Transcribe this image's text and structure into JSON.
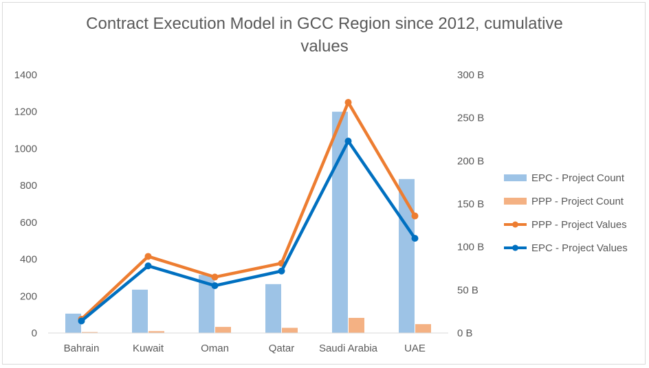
{
  "chart_data": {
    "type": "bar",
    "title_line1": "Contract Execution Model in GCC Region since 2012, cumulative",
    "title_line2": "values",
    "categories": [
      "Bahrain",
      "Kuwait",
      "Oman",
      "Qatar",
      "Saudi Arabia",
      "UAE"
    ],
    "left_axis": {
      "ticks": [
        "0",
        "200",
        "400",
        "600",
        "800",
        "1000",
        "1200",
        "1400"
      ],
      "ylim": [
        0,
        1400
      ]
    },
    "right_axis": {
      "ticks": [
        "0 B",
        "50 B",
        "100 B",
        "150 B",
        "200 B",
        "250 B",
        "300 B"
      ],
      "ylim": [
        0,
        300
      ]
    },
    "series": [
      {
        "name": "EPC - Project Count",
        "kind": "bar",
        "axis": "left",
        "color": "#9dc3e6",
        "values": [
          105,
          235,
          315,
          265,
          1200,
          835
        ]
      },
      {
        "name": "PPP - Project Count",
        "kind": "bar",
        "axis": "left",
        "color": "#f4b183",
        "values": [
          5,
          10,
          33,
          28,
          82,
          48
        ]
      },
      {
        "name": "PPP - Project Values",
        "kind": "line",
        "axis": "right",
        "color": "#ed7d31",
        "values": [
          16,
          89,
          65,
          81,
          268,
          136
        ]
      },
      {
        "name": "EPC - Project Values",
        "kind": "line",
        "axis": "right",
        "color": "#0070c0",
        "values": [
          14,
          78,
          55,
          72,
          223,
          110
        ]
      }
    ],
    "legend_position": "right",
    "grid": false
  }
}
